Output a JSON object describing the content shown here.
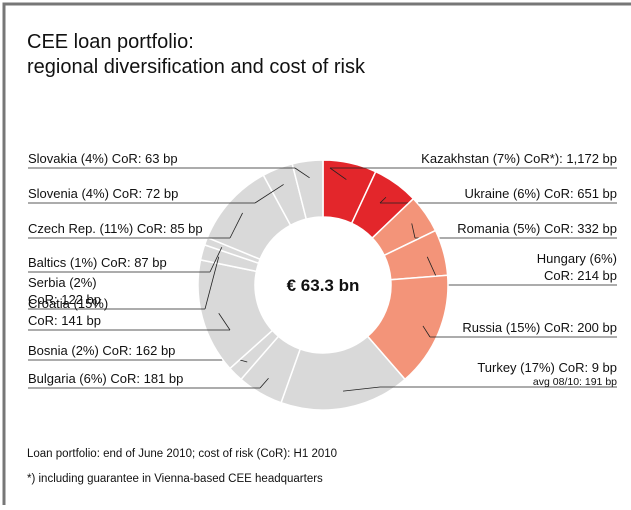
{
  "chart_data": {
    "type": "donut",
    "title": [
      "CEE loan portfolio:",
      "regional diversification and cost of risk"
    ],
    "center_label": "€ 63.3 bn",
    "categories": [
      [
        "Kazakhstan (7%) CoR*): 1,172 bp"
      ],
      [
        "Ukraine (6%) CoR: 651 bp"
      ],
      [
        "Romania (5%) CoR: 332 bp"
      ],
      [
        "Hungary (6%)",
        "CoR: 214 bp"
      ],
      [
        "Russia (15%) CoR: 200 bp"
      ],
      [
        "Turkey (17%) CoR: 9 bp"
      ],
      [
        "Bulgaria (6%) CoR: 181 bp"
      ],
      [
        "Bosnia (2%) CoR: 162 bp"
      ],
      [
        "Croatia (15%)",
        "CoR: 141 bp"
      ],
      [
        "Serbia (2%)",
        "CoR: 122 bp"
      ],
      [
        "Baltics (1%) CoR: 87 bp"
      ],
      [
        "Czech Rep. (11%) CoR: 85 bp"
      ],
      [
        "Slovenia (4%) CoR: 72 bp"
      ],
      [
        "Slovakia (4%) CoR: 63 bp"
      ]
    ],
    "values": [
      7,
      6,
      5,
      6,
      15,
      17,
      6,
      2,
      15,
      2,
      1,
      11,
      4,
      4
    ],
    "colors": [
      "#e3262b",
      "#e3262b",
      "#f39479",
      "#f39479",
      "#f39479",
      "#d9d9d9",
      "#d9d9d9",
      "#d9d9d9",
      "#d9d9d9",
      "#d9d9d9",
      "#d9d9d9",
      "#d9d9d9",
      "#d9d9d9",
      "#d9d9d9"
    ],
    "annotation": "avg 08/10: 191 bp",
    "footnotes": [
      "Loan portfolio: end of June 2010; cost of risk (CoR): H1 2010",
      "*) including guarantee in Vienna-based CEE headquarters"
    ]
  }
}
